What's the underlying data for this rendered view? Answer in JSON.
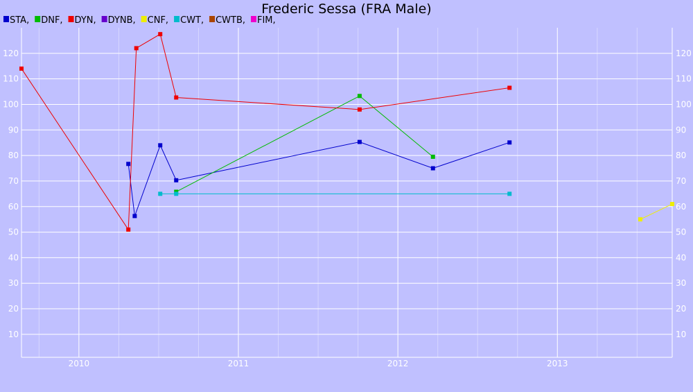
{
  "chart_data": {
    "type": "line",
    "title": "Frederic Sessa (FRA Male)",
    "xlabel": "",
    "ylabel": "",
    "x_ticks": [
      "2010",
      "2011",
      "2012",
      "2013"
    ],
    "x_tick_values": [
      2010.0,
      2011.0,
      2012.0,
      2013.0
    ],
    "xlim": [
      2009.64,
      2013.72
    ],
    "y_ticks": [
      10,
      20,
      30,
      40,
      50,
      60,
      70,
      80,
      90,
      100,
      110,
      120
    ],
    "ylim": [
      1,
      130
    ],
    "grid": true,
    "legend_position": "top-left",
    "series": [
      {
        "name": "STA",
        "color": "#0000cc",
        "points": [
          [
            2010.31,
            76.7
          ],
          [
            2010.35,
            56.3
          ],
          [
            2010.51,
            84.0
          ],
          [
            2010.61,
            70.3
          ],
          [
            2011.76,
            85.3
          ],
          [
            2012.22,
            75.0
          ],
          [
            2012.7,
            85.1
          ]
        ]
      },
      {
        "name": "DNF",
        "color": "#00bb00",
        "points": [
          [
            2010.61,
            65.8
          ],
          [
            2011.76,
            103.3
          ],
          [
            2012.22,
            79.5
          ]
        ]
      },
      {
        "name": "DYN",
        "color": "#ee0000",
        "points": [
          [
            2009.64,
            114.0
          ],
          [
            2010.31,
            51.0
          ],
          [
            2010.36,
            122.0
          ],
          [
            2010.51,
            127.5
          ],
          [
            2010.61,
            102.7
          ],
          [
            2011.76,
            98.0
          ],
          [
            2012.7,
            106.5
          ]
        ]
      },
      {
        "name": "DYNB",
        "color": "#6600cc",
        "points": []
      },
      {
        "name": "CNF",
        "color": "#eeee00",
        "points": [
          [
            2013.52,
            55.0
          ],
          [
            2013.72,
            61.0
          ]
        ]
      },
      {
        "name": "CWT",
        "color": "#00bbcc",
        "points": [
          [
            2010.51,
            65.0
          ],
          [
            2010.61,
            65.0
          ],
          [
            2012.7,
            65.0
          ]
        ]
      },
      {
        "name": "CWTB",
        "color": "#aa4400",
        "points": []
      },
      {
        "name": "FIM",
        "color": "#ee00cc",
        "points": []
      }
    ]
  }
}
